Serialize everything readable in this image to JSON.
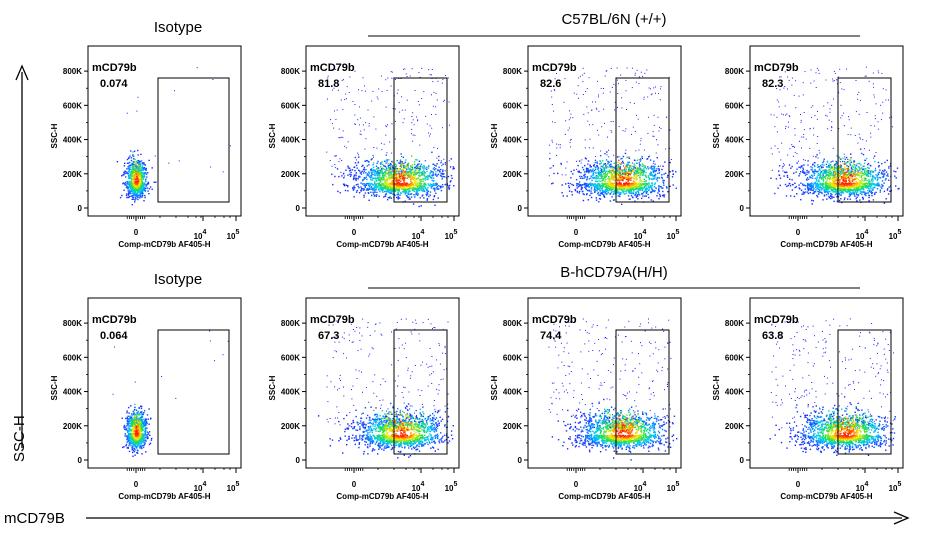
{
  "figure": {
    "global_y_label": "SSC-H",
    "global_x_label": "mCD79B",
    "rows": [
      {
        "isotype_title": "Isotype",
        "group_title": "C57BL/6N (+/+)"
      },
      {
        "isotype_title": "Isotype",
        "group_title": "B-hCD79A(H/H)"
      }
    ]
  },
  "chart_data": [
    {
      "type": "scatter",
      "subtype": "flow-cytometry-density",
      "row": 0,
      "col": 0,
      "marker_label": "mCD79b",
      "gate_percent": "0.074",
      "xlabel": "Comp-mCD79b AF405-H",
      "ylabel": "SSC-H",
      "xticks": [
        "0",
        "10^4",
        "10^5"
      ],
      "yticks": [
        "0",
        "200K",
        "400K",
        "600K",
        "800K"
      ],
      "ylim": [
        0,
        900000
      ],
      "population": "isotype"
    },
    {
      "type": "scatter",
      "subtype": "flow-cytometry-density",
      "row": 0,
      "col": 1,
      "marker_label": "mCD79b",
      "gate_percent": "81.8",
      "xlabel": "Comp-mCD79b AF405-H",
      "ylabel": "SSC-H",
      "xticks": [
        "0",
        "10^4",
        "10^5"
      ],
      "yticks": [
        "0",
        "200K",
        "400K",
        "600K",
        "800K"
      ],
      "ylim": [
        0,
        900000
      ],
      "population": "positive"
    },
    {
      "type": "scatter",
      "subtype": "flow-cytometry-density",
      "row": 0,
      "col": 2,
      "marker_label": "mCD79b",
      "gate_percent": "82.6",
      "xlabel": "Comp-mCD79b AF405-H",
      "ylabel": "SSC-H",
      "xticks": [
        "0",
        "10^4",
        "10^5"
      ],
      "yticks": [
        "0",
        "200K",
        "400K",
        "600K",
        "800K"
      ],
      "ylim": [
        0,
        900000
      ],
      "population": "positive"
    },
    {
      "type": "scatter",
      "subtype": "flow-cytometry-density",
      "row": 0,
      "col": 3,
      "marker_label": "mCD79b",
      "gate_percent": "82.3",
      "xlabel": "Comp-mCD79b AF405-H",
      "ylabel": "SSC-H",
      "xticks": [
        "0",
        "10^4",
        "10^5"
      ],
      "yticks": [
        "0",
        "200K",
        "400K",
        "600K",
        "800K"
      ],
      "ylim": [
        0,
        900000
      ],
      "population": "positive"
    },
    {
      "type": "scatter",
      "subtype": "flow-cytometry-density",
      "row": 1,
      "col": 0,
      "marker_label": "mCD79b",
      "gate_percent": "0.064",
      "xlabel": "Comp-mCD79b AF405-H",
      "ylabel": "SSC-H",
      "xticks": [
        "0",
        "10^4",
        "10^5"
      ],
      "yticks": [
        "0",
        "200K",
        "400K",
        "600K",
        "800K"
      ],
      "ylim": [
        0,
        900000
      ],
      "population": "isotype"
    },
    {
      "type": "scatter",
      "subtype": "flow-cytometry-density",
      "row": 1,
      "col": 1,
      "marker_label": "mCD79b",
      "gate_percent": "67.3",
      "xlabel": "Comp-mCD79b AF405-H",
      "ylabel": "SSC-H",
      "xticks": [
        "0",
        "10^4",
        "10^5"
      ],
      "yticks": [
        "0",
        "200K",
        "400K",
        "600K",
        "800K"
      ],
      "ylim": [
        0,
        900000
      ],
      "population": "positive"
    },
    {
      "type": "scatter",
      "subtype": "flow-cytometry-density",
      "row": 1,
      "col": 2,
      "marker_label": "mCD79b",
      "gate_percent": "74.4",
      "xlabel": "Comp-mCD79b AF405-H",
      "ylabel": "SSC-H",
      "xticks": [
        "0",
        "10^4",
        "10^5"
      ],
      "yticks": [
        "0",
        "200K",
        "400K",
        "600K",
        "800K"
      ],
      "ylim": [
        0,
        900000
      ],
      "population": "positive"
    },
    {
      "type": "scatter",
      "subtype": "flow-cytometry-density",
      "row": 1,
      "col": 3,
      "marker_label": "mCD79b",
      "gate_percent": "63.8",
      "xlabel": "Comp-mCD79b AF405-H",
      "ylabel": "SSC-H",
      "xticks": [
        "0",
        "10^4",
        "10^5"
      ],
      "yticks": [
        "0",
        "200K",
        "400K",
        "600K",
        "800K"
      ],
      "ylim": [
        0,
        900000
      ],
      "population": "positive"
    }
  ],
  "colors": {
    "low": "#1a1aff",
    "mid1": "#00c8ff",
    "mid2": "#22dd44",
    "mid3": "#ffee00",
    "high": "#ff2200",
    "frame": "#000000"
  }
}
